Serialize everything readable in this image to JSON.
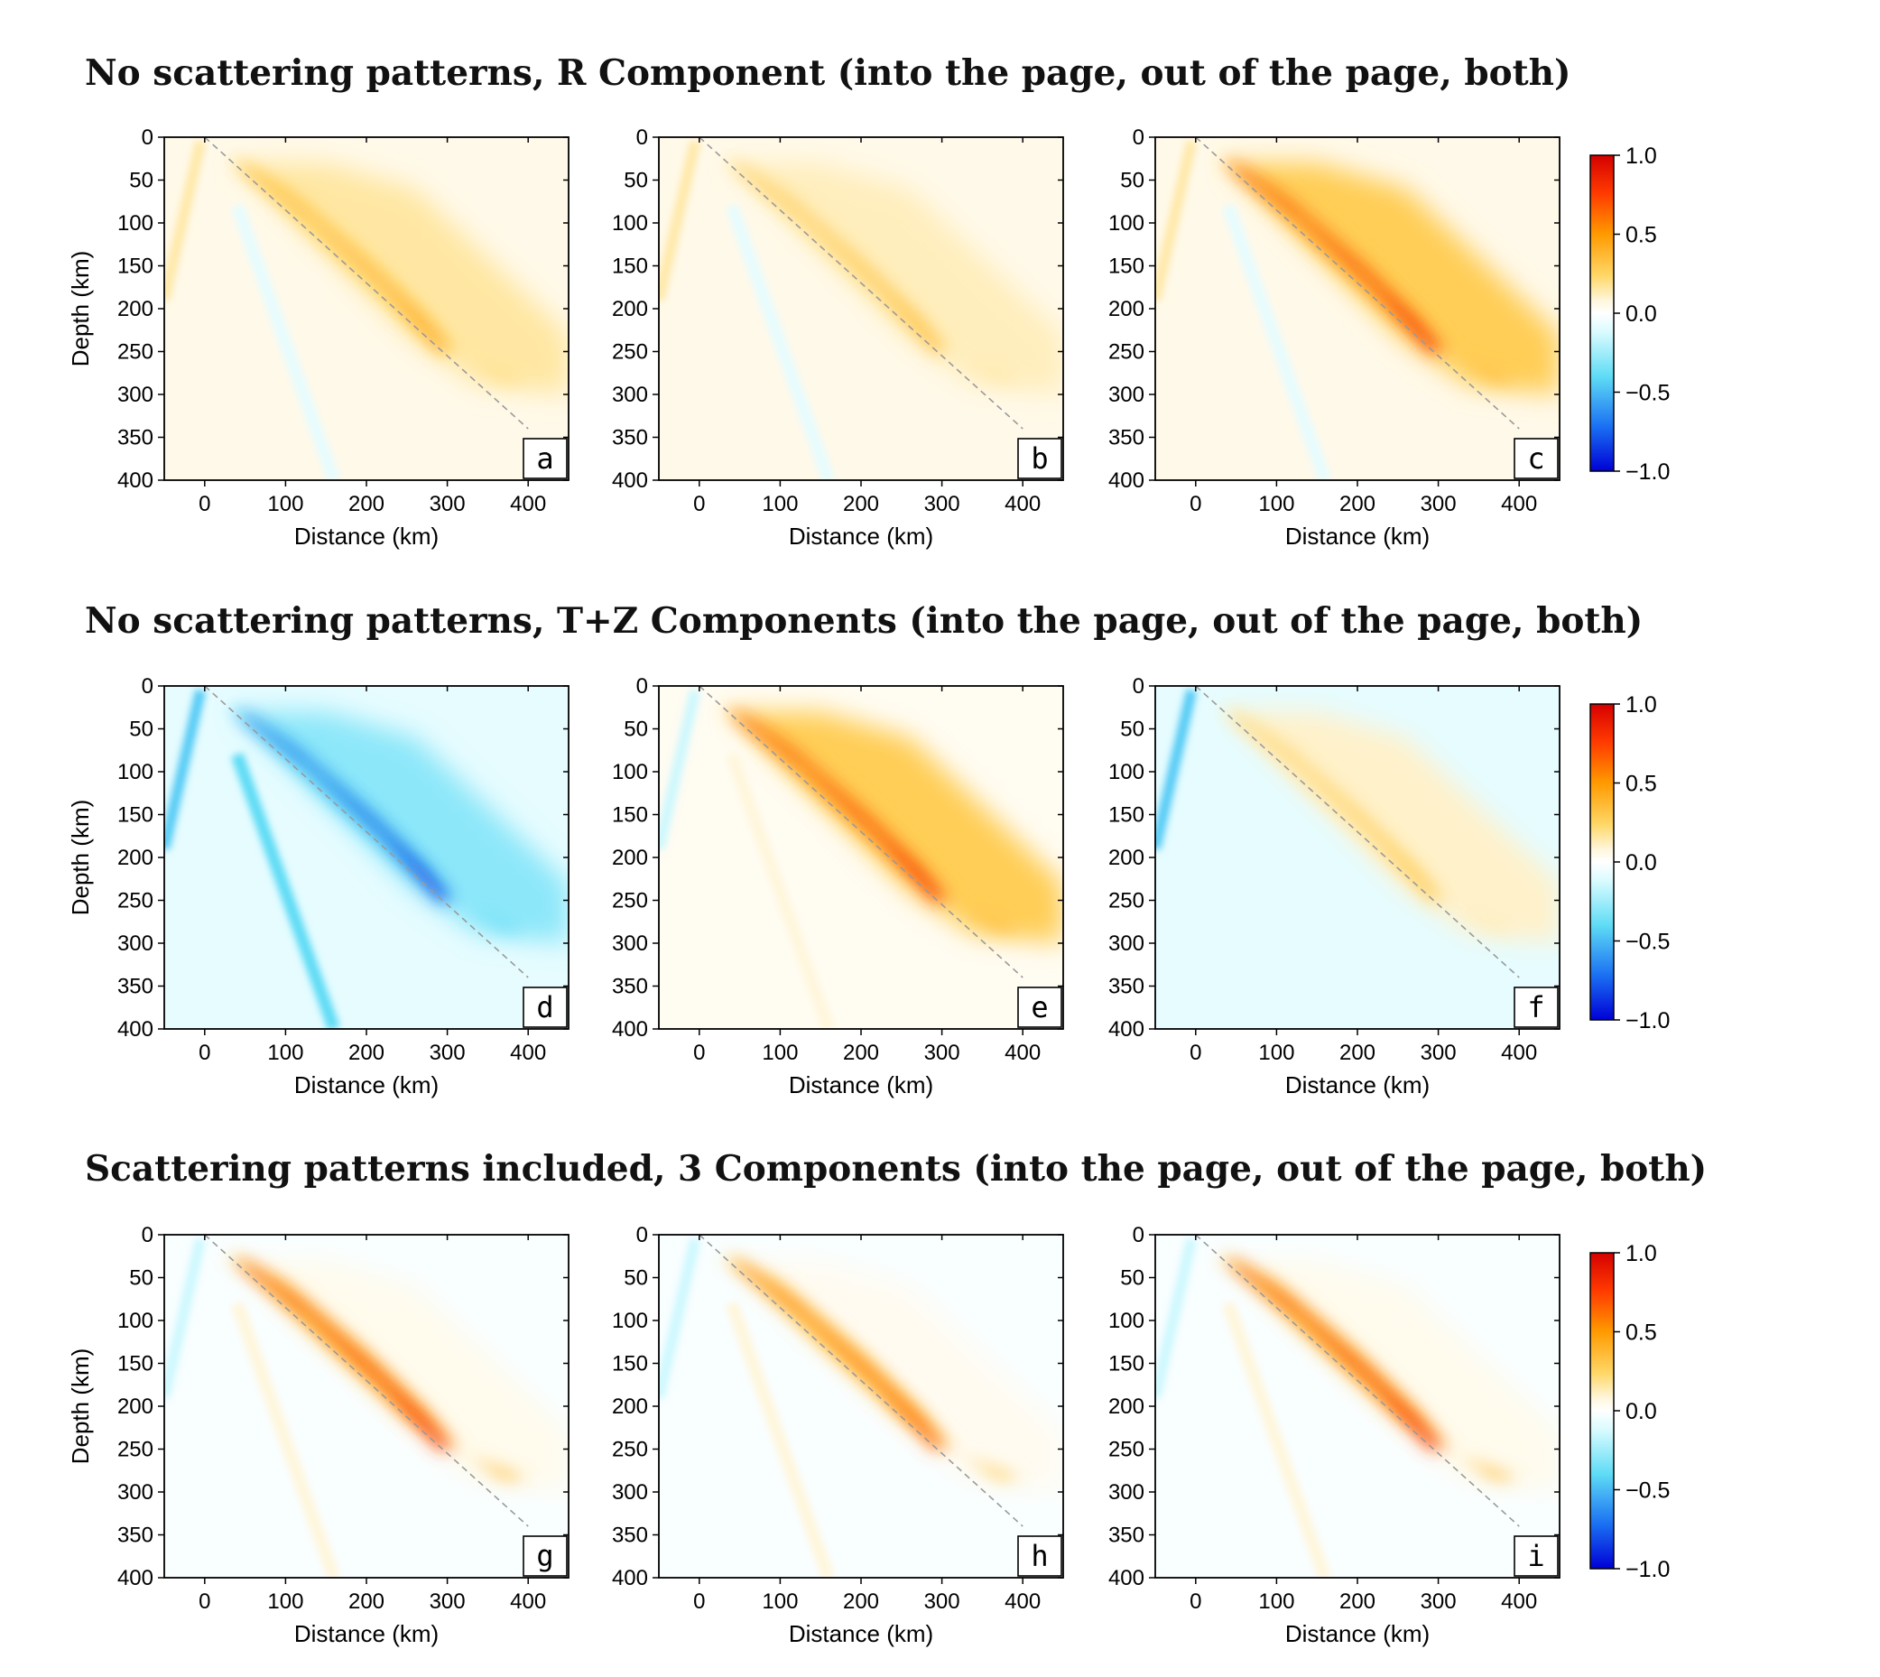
{
  "rows": [
    {
      "title": "No scattering patterns, R Component (into the page, out of the page, both)"
    },
    {
      "title": "No scattering patterns, T+Z Components (into the page, out of the page, both)"
    },
    {
      "title": "Scattering patterns included, 3 Components (into the page, out of the page, both)"
    }
  ],
  "chart_data": {
    "type": "heatmap",
    "xlabel": "Distance (km)",
    "ylabel": "Depth (km)",
    "xlim": [
      -50,
      450
    ],
    "ylim": [
      400,
      0
    ],
    "xticks": [
      "0",
      "100",
      "200",
      "300",
      "400"
    ],
    "yticks": [
      "0",
      "50",
      "100",
      "150",
      "200",
      "250",
      "300",
      "350",
      "400"
    ],
    "reference_line": {
      "style": "dashed",
      "color": "#9a9a9a",
      "x": [
        0,
        400
      ],
      "y": [
        0,
        340
      ]
    },
    "colorbar": {
      "range": [
        -1.0,
        1.0
      ],
      "ticks": [
        "1.0",
        "0.5",
        "0.0",
        "−0.5",
        "−1.0"
      ],
      "colors": [
        "#d50000",
        "#ff3a00",
        "#ff9a00",
        "#ffd766",
        "#fff6dc",
        "#ffffff",
        "#d9fbff",
        "#5fdcf5",
        "#1a6ff2",
        "#0000d6"
      ]
    },
    "panels": [
      {
        "letter": "a",
        "row": 0,
        "col": 0,
        "max_amplitude": 0.45,
        "main_energy": "positive",
        "near_ray": "positive",
        "far_ray": "negative"
      },
      {
        "letter": "b",
        "row": 0,
        "col": 1,
        "max_amplitude": 0.35,
        "main_energy": "positive",
        "near_ray": "positive",
        "far_ray": "negative"
      },
      {
        "letter": "c",
        "row": 0,
        "col": 2,
        "max_amplitude": 0.8,
        "main_energy": "positive",
        "near_ray": "positive",
        "far_ray": "negative"
      },
      {
        "letter": "d",
        "row": 1,
        "col": 0,
        "max_amplitude": -0.85,
        "main_energy": "negative",
        "near_ray": "negative",
        "far_ray": "negative"
      },
      {
        "letter": "e",
        "row": 1,
        "col": 1,
        "max_amplitude": 0.8,
        "main_energy": "positive",
        "near_ray": "negative",
        "far_ray": "positive"
      },
      {
        "letter": "f",
        "row": 1,
        "col": 2,
        "max_amplitude": 0.3,
        "main_energy": "positive",
        "near_ray": "negative",
        "far_ray": "negative"
      },
      {
        "letter": "g",
        "row": 2,
        "col": 0,
        "max_amplitude": 0.8,
        "main_energy": "positive",
        "near_ray": "negative",
        "far_ray": "positive"
      },
      {
        "letter": "h",
        "row": 2,
        "col": 1,
        "max_amplitude": 0.65,
        "main_energy": "positive",
        "near_ray": "negative",
        "far_ray": "positive"
      },
      {
        "letter": "i",
        "row": 2,
        "col": 2,
        "max_amplitude": 0.8,
        "main_energy": "positive",
        "near_ray": "negative",
        "far_ray": "positive"
      }
    ]
  }
}
